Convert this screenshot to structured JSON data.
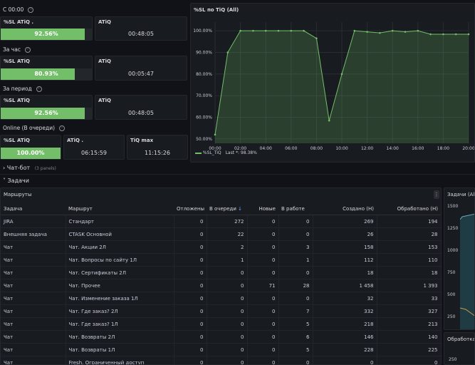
{
  "summary": {
    "s0000": {
      "title": "С 00:00",
      "sl_label": "%SL ATiQ .",
      "sl_value": "92.56%",
      "sl_percent": 92.56,
      "atiq_label": "ATiQ",
      "atiq_value": "00:48:05"
    },
    "hour": {
      "title": "За час",
      "sl_label": "%SL ATiQ",
      "sl_value": "80.93%",
      "sl_percent": 80.93,
      "atiq_label": "ATiQ",
      "atiq_value": "00:05:47"
    },
    "period": {
      "title": "За период",
      "sl_label": "%SL ATiQ",
      "sl_value": "92.56%",
      "sl_percent": 92.56,
      "atiq_label": "ATiQ",
      "atiq_value": "00:48:05"
    },
    "online": {
      "title": "Online (В очереди)",
      "sl_label": "%SL ATiQ",
      "sl_value": "100.00%",
      "sl_percent": 100,
      "atiq_label": "ATiQ .",
      "atiq_value": "06:15:59",
      "tiq_label": "TiQ max",
      "tiq_value": "11:15:26"
    }
  },
  "sl_chart": {
    "title": "%SL по TiQ (All)",
    "legend_series": "%SL_TiQ",
    "legend_last": "Last *: 98.38%",
    "series_color": "#73bf69",
    "chart_data": {
      "type": "area",
      "title": "%SL по TiQ (All)",
      "x": [
        "00:00",
        "01:00",
        "02:00",
        "03:00",
        "04:00",
        "05:00",
        "06:00",
        "07:00",
        "08:00",
        "09:00",
        "10:00",
        "11:00",
        "12:00",
        "13:00",
        "14:00",
        "15:00",
        "16:00",
        "17:00",
        "18:00",
        "19:00",
        "20:00"
      ],
      "series": [
        {
          "name": "%SL_TiQ",
          "values": [
            52,
            90,
            100,
            100,
            100,
            100,
            100,
            100,
            96.5,
            58.5,
            80,
            100,
            99.5,
            99,
            100,
            99.5,
            100,
            98.4,
            98.4,
            98.4,
            98.38
          ]
        }
      ],
      "ylim": [
        48,
        104
      ],
      "y_ticks": [
        "100.00%",
        "90.00%",
        "80.00%",
        "70.00%",
        "60.00%",
        "50.00%"
      ],
      "y_tick_values": [
        100,
        90,
        80,
        70,
        60,
        50
      ],
      "x_ticks": [
        "00:00",
        "02:00",
        "04:00",
        "06:00",
        "08:00",
        "10:00",
        "12:00",
        "14:00",
        "16:00",
        "18:00",
        "20:00"
      ],
      "grid": true,
      "legend": "bottom-left"
    }
  },
  "rows": {
    "chatbot_label": "Чат-бот",
    "chatbot_count": "(3 panels)",
    "tasks_label": "Задачи"
  },
  "routes": {
    "title": "Маршруты",
    "menu_icon": "kebab-menu-icon",
    "sort_icon": "arrow-down-icon",
    "columns": [
      "Задача",
      "Маршрут",
      "Отложены",
      "В очереди",
      "Новые",
      "В работе",
      "Создано (Н)",
      "Обработано (Н)"
    ],
    "sort_indicator": "↓",
    "items": [
      {
        "task": "JIRA",
        "route": "Стандарт",
        "postponed": "0",
        "queue": "272",
        "new": "0",
        "work": "0",
        "created": "269",
        "processed": "194"
      },
      {
        "task": "Внешняя задача",
        "route": "CTASK Основной",
        "postponed": "0",
        "queue": "22",
        "new": "0",
        "work": "0",
        "created": "26",
        "processed": "28"
      },
      {
        "task": "Чат",
        "route": "Чат. Акции 2Л",
        "postponed": "0",
        "queue": "2",
        "new": "0",
        "work": "3",
        "created": "158",
        "processed": "153"
      },
      {
        "task": "Чат",
        "route": "Чат. Вопросы по сайту 1Л",
        "postponed": "0",
        "queue": "1",
        "new": "0",
        "work": "1",
        "created": "112",
        "processed": "110"
      },
      {
        "task": "Чат",
        "route": "Чат. Сертификаты 2Л",
        "postponed": "0",
        "queue": "0",
        "new": "0",
        "work": "0",
        "created": "18",
        "processed": "18"
      },
      {
        "task": "Чат",
        "route": "Чат. Прочее",
        "postponed": "0",
        "queue": "0",
        "new": "71",
        "work": "28",
        "created": "1 458",
        "processed": "1 393"
      },
      {
        "task": "Чат",
        "route": "Чат. Изменение заказа 1Л",
        "postponed": "0",
        "queue": "0",
        "new": "0",
        "work": "0",
        "created": "32",
        "processed": "33"
      },
      {
        "task": "Чат",
        "route": "Чат. Где заказ? 2Л",
        "postponed": "0",
        "queue": "0",
        "new": "0",
        "work": "7",
        "created": "332",
        "processed": "327"
      },
      {
        "task": "Чат",
        "route": "Чат. Где заказ? 1Л",
        "postponed": "0",
        "queue": "0",
        "new": "0",
        "work": "5",
        "created": "218",
        "processed": "213"
      },
      {
        "task": "Чат",
        "route": "Чат. Возвраты 2Л",
        "postponed": "0",
        "queue": "0",
        "new": "0",
        "work": "6",
        "created": "146",
        "processed": "140"
      },
      {
        "task": "Чат",
        "route": "Чат. Возвраты 1Л",
        "postponed": "0",
        "queue": "0",
        "new": "0",
        "work": "5",
        "created": "228",
        "processed": "225"
      },
      {
        "task": "Чат",
        "route": "Fresh. Ограниченный доступ",
        "postponed": "0",
        "queue": "0",
        "new": "0",
        "work": "0",
        "created": "0",
        "processed": "0"
      }
    ]
  },
  "tasks_chart": {
    "title": "Задачи (All)",
    "y_ticks": [
      "1500",
      "1250",
      "1000",
      "750",
      "500",
      "250"
    ],
    "fill_color": "#1f3b43"
  },
  "processed_panel": {
    "title": "Обработка",
    "y_tick": "250"
  }
}
